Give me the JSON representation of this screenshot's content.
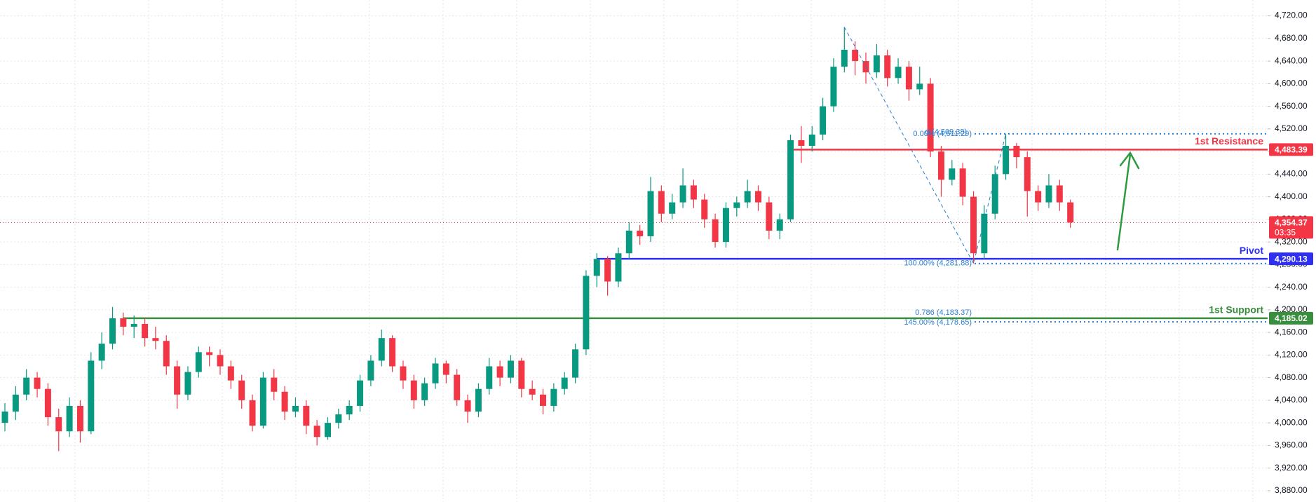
{
  "chart_data": {
    "type": "candlestick",
    "up_color": "#089981",
    "down_color": "#f23645",
    "grid": true,
    "ylim": [
      3860,
      4748
    ],
    "yticks": [
      {
        "value": 3880,
        "label": "3,880.00"
      },
      {
        "value": 3920,
        "label": "3,920.00"
      },
      {
        "value": 3960,
        "label": "3,960.00"
      },
      {
        "value": 4000,
        "label": "4,000.00"
      },
      {
        "value": 4040,
        "label": "4,040.00"
      },
      {
        "value": 4080,
        "label": "4,080.00"
      },
      {
        "value": 4120,
        "label": "4,120.00"
      },
      {
        "value": 4160,
        "label": "4,160.00"
      },
      {
        "value": 4200,
        "label": "4,200.00"
      },
      {
        "value": 4240,
        "label": "4,240.00"
      },
      {
        "value": 4280,
        "label": "4,280.00"
      },
      {
        "value": 4320,
        "label": "4,320.00"
      },
      {
        "value": 4360,
        "label": "4,360.00"
      },
      {
        "value": 4400,
        "label": "4,400.00"
      },
      {
        "value": 4440,
        "label": "4,440.00"
      },
      {
        "value": 4480,
        "label": "4,480.00"
      },
      {
        "value": 4520,
        "label": "4,520.00"
      },
      {
        "value": 4560,
        "label": "4,560.00"
      },
      {
        "value": 4600,
        "label": "4,600.00"
      },
      {
        "value": 4640,
        "label": "4,640.00"
      },
      {
        "value": 4680,
        "label": "4,680.00"
      },
      {
        "value": 4720,
        "label": "4,720.00"
      }
    ],
    "candles": [
      [
        4000,
        4035,
        3985,
        4020
      ],
      [
        4020,
        4065,
        4005,
        4050
      ],
      [
        4050,
        4095,
        4040,
        4080
      ],
      [
        4080,
        4090,
        4045,
        4060
      ],
      [
        4060,
        4070,
        3995,
        4010
      ],
      [
        4010,
        4025,
        3950,
        3985
      ],
      [
        3985,
        4045,
        3975,
        4030
      ],
      [
        4030,
        4040,
        3965,
        3985
      ],
      [
        3985,
        4125,
        3980,
        4110
      ],
      [
        4110,
        4160,
        4095,
        4140
      ],
      [
        4140,
        4205,
        4130,
        4185
      ],
      [
        4185,
        4195,
        4155,
        4170
      ],
      [
        4170,
        4190,
        4150,
        4175
      ],
      [
        4175,
        4185,
        4135,
        4150
      ],
      [
        4150,
        4170,
        4130,
        4145
      ],
      [
        4145,
        4155,
        4085,
        4100
      ],
      [
        4100,
        4110,
        4025,
        4050
      ],
      [
        4050,
        4100,
        4040,
        4090
      ],
      [
        4090,
        4135,
        4080,
        4125
      ],
      [
        4125,
        4135,
        4100,
        4120
      ],
      [
        4120,
        4130,
        4085,
        4100
      ],
      [
        4100,
        4110,
        4060,
        4075
      ],
      [
        4075,
        4085,
        4025,
        4040
      ],
      [
        4040,
        4050,
        3985,
        3995
      ],
      [
        3995,
        4090,
        3990,
        4080
      ],
      [
        4080,
        4095,
        4040,
        4055
      ],
      [
        4055,
        4065,
        4005,
        4020
      ],
      [
        4020,
        4045,
        4010,
        4030
      ],
      [
        4030,
        4040,
        3980,
        3995
      ],
      [
        3995,
        4005,
        3960,
        3975
      ],
      [
        3975,
        4010,
        3970,
        4000
      ],
      [
        4000,
        4025,
        3990,
        4015
      ],
      [
        4015,
        4040,
        4005,
        4030
      ],
      [
        4030,
        4085,
        4020,
        4075
      ],
      [
        4075,
        4120,
        4065,
        4110
      ],
      [
        4110,
        4165,
        4100,
        4150
      ],
      [
        4150,
        4155,
        4090,
        4100
      ],
      [
        4100,
        4110,
        4060,
        4075
      ],
      [
        4075,
        4085,
        4025,
        4040
      ],
      [
        4040,
        4080,
        4030,
        4070
      ],
      [
        4070,
        4115,
        4060,
        4105
      ],
      [
        4105,
        4110,
        4070,
        4085
      ],
      [
        4085,
        4095,
        4030,
        4040
      ],
      [
        4040,
        4050,
        4000,
        4020
      ],
      [
        4020,
        4070,
        4010,
        4060
      ],
      [
        4060,
        4115,
        4050,
        4100
      ],
      [
        4100,
        4110,
        4065,
        4080
      ],
      [
        4080,
        4120,
        4070,
        4110
      ],
      [
        4110,
        4115,
        4045,
        4060
      ],
      [
        4060,
        4075,
        4040,
        4050
      ],
      [
        4050,
        4060,
        4015,
        4030
      ],
      [
        4030,
        4070,
        4020,
        4060
      ],
      [
        4060,
        4090,
        4050,
        4080
      ],
      [
        4080,
        4140,
        4070,
        4130
      ],
      [
        4130,
        4270,
        4120,
        4260
      ],
      [
        4260,
        4300,
        4240,
        4290
      ],
      [
        4290,
        4295,
        4225,
        4250
      ],
      [
        4250,
        4310,
        4240,
        4300
      ],
      [
        4300,
        4355,
        4290,
        4340
      ],
      [
        4340,
        4350,
        4315,
        4330
      ],
      [
        4330,
        4435,
        4320,
        4410
      ],
      [
        4410,
        4420,
        4355,
        4370
      ],
      [
        4370,
        4405,
        4360,
        4390
      ],
      [
        4390,
        4450,
        4380,
        4420
      ],
      [
        4420,
        4430,
        4380,
        4395
      ],
      [
        4395,
        4405,
        4345,
        4360
      ],
      [
        4360,
        4370,
        4310,
        4320
      ],
      [
        4320,
        4390,
        4310,
        4380
      ],
      [
        4380,
        4400,
        4365,
        4390
      ],
      [
        4390,
        4430,
        4380,
        4410
      ],
      [
        4410,
        4420,
        4375,
        4390
      ],
      [
        4390,
        4400,
        4325,
        4340
      ],
      [
        4340,
        4370,
        4325,
        4360
      ],
      [
        4360,
        4510,
        4355,
        4500
      ],
      [
        4500,
        4525,
        4460,
        4490
      ],
      [
        4490,
        4525,
        4480,
        4510
      ],
      [
        4510,
        4575,
        4500,
        4560
      ],
      [
        4560,
        4645,
        4550,
        4630
      ],
      [
        4630,
        4700,
        4620,
        4660
      ],
      [
        4660,
        4675,
        4615,
        4640
      ],
      [
        4640,
        4655,
        4600,
        4620
      ],
      [
        4620,
        4670,
        4610,
        4650
      ],
      [
        4650,
        4660,
        4595,
        4610
      ],
      [
        4610,
        4645,
        4600,
        4630
      ],
      [
        4630,
        4640,
        4570,
        4590
      ],
      [
        4590,
        4630,
        4580,
        4600
      ],
      [
        4600,
        4610,
        4470,
        4480
      ],
      [
        4480,
        4490,
        4400,
        4430
      ],
      [
        4430,
        4465,
        4420,
        4450
      ],
      [
        4450,
        4460,
        4385,
        4400
      ],
      [
        4400,
        4410,
        4282,
        4300
      ],
      [
        4300,
        4385,
        4290,
        4370
      ],
      [
        4370,
        4455,
        4360,
        4440
      ],
      [
        4440,
        4511,
        4430,
        4490
      ],
      [
        4490,
        4495,
        4450,
        4470
      ],
      [
        4470,
        4480,
        4365,
        4410
      ],
      [
        4410,
        4420,
        4375,
        4390
      ],
      [
        4390,
        4440,
        4380,
        4420
      ],
      [
        4420,
        4430,
        4375,
        4390
      ],
      [
        4390,
        4395,
        4345,
        4354.37
      ]
    ],
    "levels": [
      {
        "name": "1st Resistance",
        "value": 4483.39,
        "label": "4,483.39",
        "color": "#f23645",
        "start_index": 73
      },
      {
        "name": "Pivot",
        "value": 4290.13,
        "label": "4,290.13",
        "color": "#2f2ff0",
        "start_index": 55
      },
      {
        "name": "1st Support",
        "value": 4185.02,
        "label": "4,185.02",
        "color": "#388e3c",
        "start_index": 11
      }
    ],
    "current_price": {
      "value": 4354.37,
      "label": "4,354.37",
      "countdown": "03:35",
      "color": "#f23645"
    },
    "fib_levels": [
      {
        "value": 4511.29,
        "label": "0.00% (4,511.29)"
      },
      {
        "value": 4281.88,
        "label": "100.00% (4,281.88)"
      },
      {
        "value": 4183.37,
        "label": "0.786 (4,183.37)"
      },
      {
        "value": 4178.65,
        "label": "145.00% (4,178.65)"
      }
    ],
    "fib_point": {
      "value": 4509.38,
      "label": "(4,509.38)"
    },
    "fib_color": "#2a7fd4"
  }
}
